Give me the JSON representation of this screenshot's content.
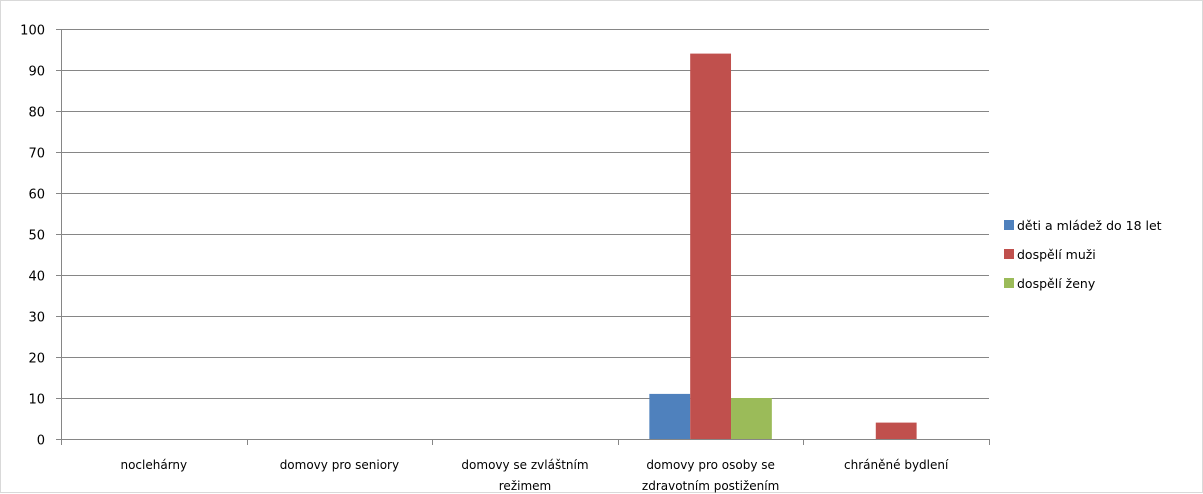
{
  "chart_data": {
    "type": "bar",
    "title": "",
    "xlabel": "",
    "ylabel": "",
    "ylim": [
      0,
      100
    ],
    "yticks": [
      0,
      10,
      20,
      30,
      40,
      50,
      60,
      70,
      80,
      90,
      100
    ],
    "grid": true,
    "legend_position": "right",
    "categories": [
      [
        "noclehárny"
      ],
      [
        "domovy pro seniory"
      ],
      [
        "domovy se zvláštním",
        "režimem"
      ],
      [
        "domovy pro osoby se",
        "zdravotním postižením"
      ],
      [
        "chráněné bydlení"
      ]
    ],
    "series": [
      {
        "name": "děti a mládež do 18 let",
        "color": "#4f81bd",
        "values": [
          0,
          0,
          0,
          11,
          0
        ]
      },
      {
        "name": "dospělí muži",
        "color": "#c0504d",
        "values": [
          0,
          0,
          0,
          94,
          4
        ]
      },
      {
        "name": "dospělí ženy",
        "color": "#9bbb59",
        "values": [
          0,
          0,
          0,
          10,
          0
        ]
      }
    ]
  }
}
